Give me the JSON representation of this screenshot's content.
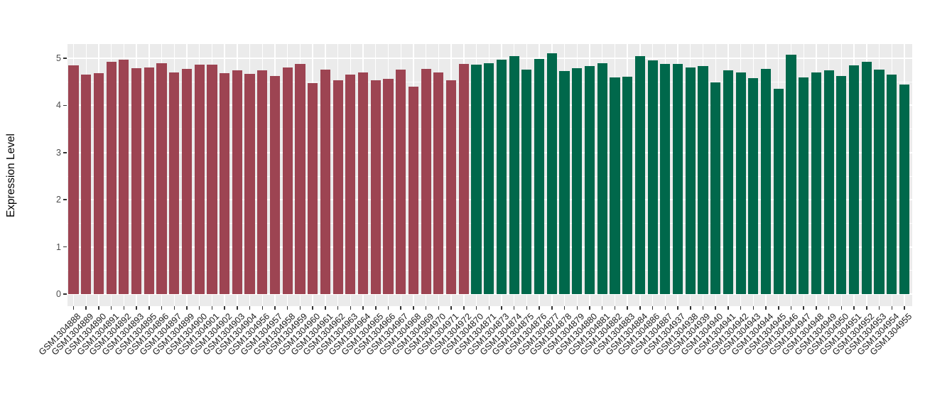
{
  "chart_data": {
    "type": "bar",
    "title": "",
    "xlabel": "",
    "ylabel": "Expression Level",
    "ylim": [
      -0.26,
      5.3
    ],
    "yticks": [
      0,
      1,
      2,
      3,
      4,
      5
    ],
    "yticks_minor": [
      0.5,
      1.5,
      2.5,
      3.5,
      4.5
    ],
    "grid": "on",
    "legend_position": "none",
    "categories": [
      "GSM1304888",
      "GSM1304889",
      "GSM1304890",
      "GSM1304891",
      "GSM1304892",
      "GSM1304893",
      "GSM1304895",
      "GSM1304896",
      "GSM1304897",
      "GSM1304899",
      "GSM1304900",
      "GSM1304901",
      "GSM1304902",
      "GSM1304903",
      "GSM1304904",
      "GSM1304956",
      "GSM1304957",
      "GSM1304958",
      "GSM1304959",
      "GSM1304960",
      "GSM1304961",
      "GSM1304962",
      "GSM1304963",
      "GSM1304964",
      "GSM1304965",
      "GSM1304966",
      "GSM1304967",
      "GSM1304968",
      "GSM1304969",
      "GSM1304970",
      "GSM1304971",
      "GSM1304972",
      "GSM1304870",
      "GSM1304871",
      "GSM1304873",
      "GSM1304874",
      "GSM1304875",
      "GSM1304876",
      "GSM1304877",
      "GSM1304878",
      "GSM1304879",
      "GSM1304880",
      "GSM1304881",
      "GSM1304882",
      "GSM1304883",
      "GSM1304884",
      "GSM1304886",
      "GSM1304887",
      "GSM1304937",
      "GSM1304938",
      "GSM1304939",
      "GSM1304940",
      "GSM1304941",
      "GSM1304942",
      "GSM1304943",
      "GSM1304944",
      "GSM1304945",
      "GSM1304946",
      "GSM1304947",
      "GSM1304948",
      "GSM1304949",
      "GSM1304950",
      "GSM1304951",
      "GSM1304952",
      "GSM1304953",
      "GSM1304954",
      "GSM1304955"
    ],
    "values": [
      4.85,
      4.66,
      4.69,
      4.93,
      4.97,
      4.79,
      4.81,
      4.89,
      4.7,
      4.77,
      4.87,
      4.86,
      4.68,
      4.75,
      4.67,
      4.74,
      4.62,
      4.81,
      4.88,
      4.47,
      4.76,
      4.54,
      4.66,
      4.7,
      4.53,
      4.57,
      4.76,
      4.4,
      4.77,
      4.7,
      4.54,
      4.88,
      4.87,
      4.9,
      4.97,
      5.04,
      4.76,
      4.99,
      5.11,
      4.73,
      4.79,
      4.83,
      4.9,
      4.6,
      4.61,
      5.05,
      4.96,
      4.88,
      4.88,
      4.81,
      4.83,
      4.49,
      4.75,
      4.7,
      4.58,
      4.78,
      4.35,
      5.08,
      4.6,
      4.7,
      4.75,
      4.63,
      4.85,
      4.92,
      4.76,
      4.66,
      4.45
    ],
    "bar_groups": [
      "red",
      "red",
      "red",
      "red",
      "red",
      "red",
      "red",
      "red",
      "red",
      "red",
      "red",
      "red",
      "red",
      "red",
      "red",
      "red",
      "red",
      "red",
      "red",
      "red",
      "red",
      "red",
      "red",
      "red",
      "red",
      "red",
      "red",
      "red",
      "red",
      "red",
      "red",
      "red",
      "green",
      "green",
      "green",
      "green",
      "green",
      "green",
      "green",
      "green",
      "green",
      "green",
      "green",
      "green",
      "green",
      "green",
      "green",
      "green",
      "green",
      "green",
      "green",
      "green",
      "green",
      "green",
      "green",
      "green",
      "green",
      "green",
      "green",
      "green",
      "green",
      "green",
      "green",
      "green",
      "green",
      "green",
      "green"
    ],
    "group_colors": {
      "red": "#9D4452",
      "green": "#00684B"
    }
  },
  "style": {
    "panel_background": "#EBEBEB",
    "gridline_color": "#FFFFFF",
    "axis_tick_color": "#333333",
    "axis_text_color": "#4D4D4D",
    "axis_title_color": "#000000"
  }
}
